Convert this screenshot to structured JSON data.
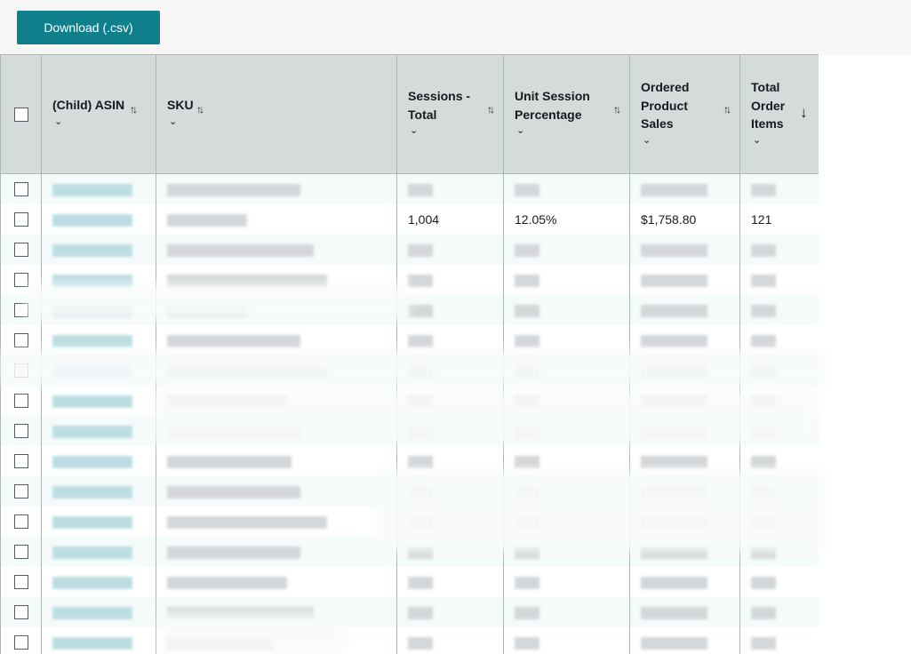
{
  "toolbar": {
    "download_label": "Download (.csv)"
  },
  "table": {
    "columns": [
      {
        "label": "(Child) ASIN",
        "sort": "updown"
      },
      {
        "label": "SKU",
        "sort": "updown"
      },
      {
        "label": "Sessions - Total",
        "sort": "updown"
      },
      {
        "label": "Unit Session Percentage",
        "sort": "updown"
      },
      {
        "label": "Ordered Product Sales",
        "sort": "updown"
      },
      {
        "label": "Total Order Items",
        "sort": "descending"
      }
    ],
    "visible_row": {
      "sessions_total": "1,004",
      "unit_session_percentage": "12.05%",
      "ordered_product_sales": "$1,758.80",
      "total_order_items": "121"
    },
    "redacted_row_count": 16
  },
  "icons": {
    "sort": "sort-updown-icon",
    "sort_desc": "arrow-down-icon",
    "dropdown": "chevron-down-icon"
  },
  "colors": {
    "primary_button": "#0f7f8c",
    "header_bg": "#d5dbdb",
    "row_alt": "#f5fbfb",
    "asin_blur": "#bcdde2"
  }
}
